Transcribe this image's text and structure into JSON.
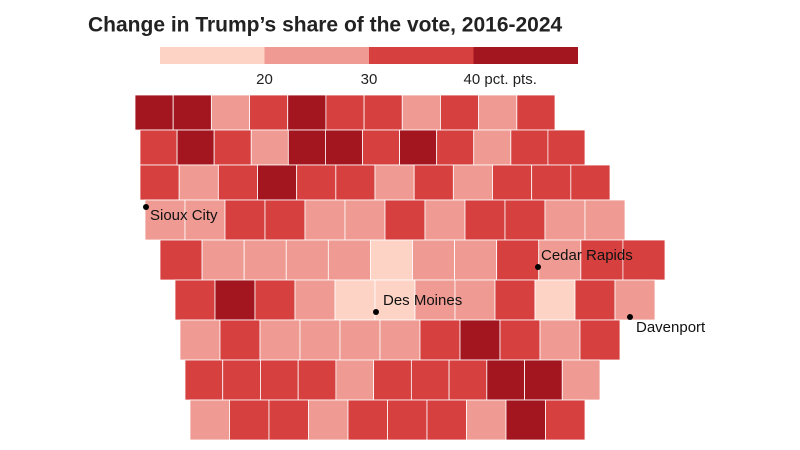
{
  "title": "Change in Trump’s share of the vote, 2016-2024",
  "legend": {
    "colors": [
      "#fcd3c4",
      "#ef9a92",
      "#d6403f",
      "#a3161f"
    ],
    "labels": [
      "20",
      "30",
      "40 pct. pts."
    ]
  },
  "cities": [
    "Sioux City",
    "Cedar Rapids",
    "Des Moines",
    "Davenport"
  ],
  "counties": [
    [
      3,
      3,
      1,
      2,
      3,
      2,
      2,
      1,
      2,
      1,
      2
    ],
    [
      2,
      3,
      2,
      1,
      3,
      3,
      2,
      3,
      2,
      1,
      2,
      2
    ],
    [
      2,
      1,
      2,
      3,
      2,
      2,
      1,
      2,
      1,
      2,
      2,
      2
    ],
    [
      1,
      1,
      2,
      2,
      1,
      1,
      2,
      1,
      2,
      2,
      1,
      1
    ],
    [
      2,
      1,
      1,
      1,
      1,
      0,
      1,
      1,
      2,
      1,
      2,
      2
    ],
    [
      2,
      3,
      2,
      1,
      0,
      0,
      1,
      1,
      2,
      0,
      2,
      1
    ],
    [
      1,
      2,
      1,
      1,
      1,
      1,
      2,
      3,
      2,
      1,
      2
    ],
    [
      2,
      2,
      2,
      2,
      1,
      2,
      2,
      2,
      3,
      3,
      1
    ],
    [
      1,
      2,
      2,
      1,
      2,
      2,
      2,
      1,
      3,
      2
    ]
  ]
}
